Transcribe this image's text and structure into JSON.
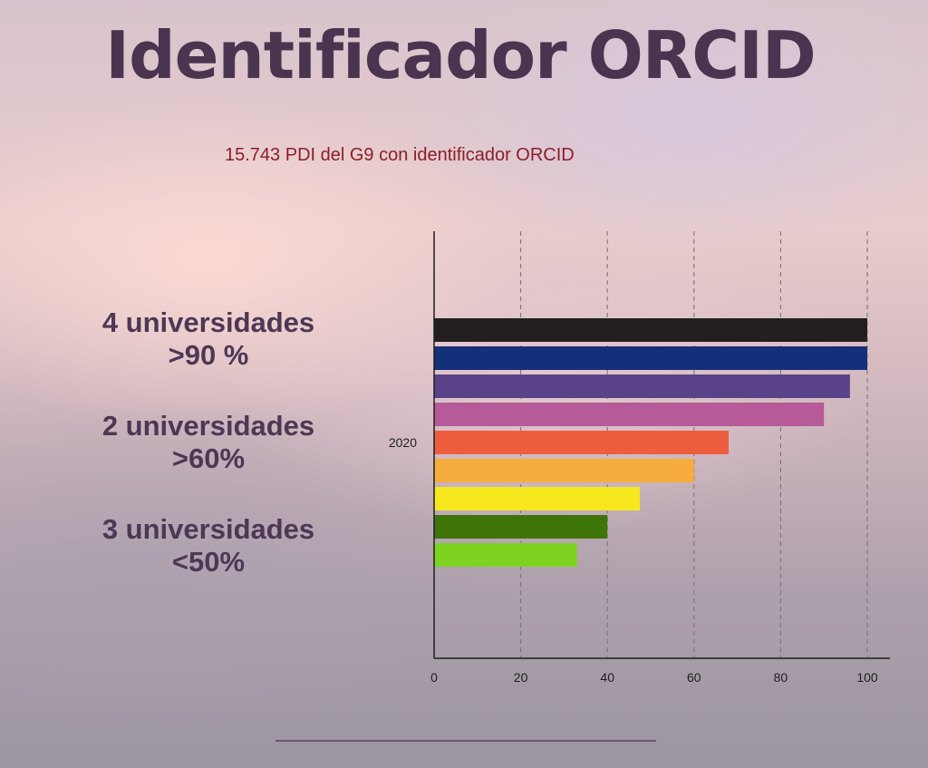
{
  "title": "Identificador ORCID",
  "subtitle": "15.743 PDI del G9 con identificador ORCID",
  "groups": [
    {
      "line1": "4 universidades",
      "line2": ">90 %"
    },
    {
      "line1": "2 universidades",
      "line2": ">60%"
    },
    {
      "line1": "3 universidades",
      "line2": "<50%"
    }
  ],
  "chart_data": {
    "type": "bar",
    "orientation": "horizontal",
    "categories": [
      "2020"
    ],
    "series": [
      {
        "values": [
          100
        ],
        "color": "#231f20"
      },
      {
        "values": [
          100
        ],
        "color": "#14307a"
      },
      {
        "values": [
          96
        ],
        "color": "#5a4289"
      },
      {
        "values": [
          90
        ],
        "color": "#b65a9a"
      },
      {
        "values": [
          68
        ],
        "color": "#ef5d3f"
      },
      {
        "values": [
          60
        ],
        "color": "#f6ad3d"
      },
      {
        "values": [
          47.5
        ],
        "color": "#f6e81c"
      },
      {
        "values": [
          40
        ],
        "color": "#3e7508"
      },
      {
        "values": [
          33
        ],
        "color": "#7ed321"
      }
    ],
    "xlim": [
      0,
      100
    ],
    "xticks": [
      0,
      20,
      40,
      60,
      80,
      100
    ],
    "grid": "vertical dashed"
  }
}
